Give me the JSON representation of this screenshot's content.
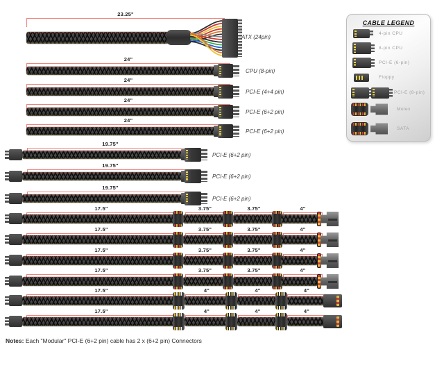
{
  "colors": {
    "dimension_line": "#f0837a",
    "background": "#ffffff"
  },
  "legend": {
    "title": "CABLE LEGEND",
    "items": [
      {
        "label": "4-pin CPU",
        "icons": [
          "cpu-4pin-connector-icon"
        ]
      },
      {
        "label": "8-pin CPU",
        "icons": [
          "cpu-8pin-connector-icon"
        ]
      },
      {
        "label": "PCI-E (6-pin)",
        "icons": [
          "pcie-6pin-connector-icon"
        ]
      },
      {
        "label": "Floppy",
        "icons": [
          "floppy-connector-icon"
        ]
      },
      {
        "label": "PCI-E (8-pin)",
        "icons": [
          "pcie-8pin-connector-icon-a",
          "pcie-8pin-connector-icon-b"
        ]
      },
      {
        "label": "Molex",
        "icons": [
          "molex-inline-connector-icon",
          "molex-plug-icon"
        ]
      },
      {
        "label": "SATA",
        "icons": [
          "sata-inline-connector-icon",
          "sata-plug-icon"
        ]
      }
    ]
  },
  "cables": [
    {
      "name": "atx-24pin",
      "label": "ATX (24pin)",
      "measurements": [
        "23.25\""
      ]
    },
    {
      "name": "cpu-8pin",
      "label": "CPU (8-pin)",
      "measurements": [
        "24\""
      ]
    },
    {
      "name": "pcie-4plus4-pin",
      "label": "PCI-E (4+4 pin)",
      "measurements": [
        "24\""
      ]
    },
    {
      "name": "pcie-6plus2-pin-1",
      "label": "PCI-E (6+2 pin)",
      "measurements": [
        "24\""
      ]
    },
    {
      "name": "pcie-6plus2-pin-2",
      "label": "PCI-E (6+2 pin)",
      "measurements": [
        "24\""
      ]
    },
    {
      "name": "pcie-6plus2-modular-1",
      "label": "PCI-E (6+2 pin)",
      "measurements": [
        "19.75\""
      ]
    },
    {
      "name": "pcie-6plus2-modular-2",
      "label": "PCI-E (6+2 pin)",
      "measurements": [
        "19.75\""
      ]
    },
    {
      "name": "pcie-6plus2-modular-3",
      "label": "PCI-E (6+2 pin)",
      "measurements": [
        "19.75\""
      ]
    },
    {
      "name": "sata-cable-1",
      "label": "",
      "measurements": [
        "17.5\"",
        "3.75\"",
        "3.75\"",
        "4\""
      ]
    },
    {
      "name": "sata-cable-2",
      "label": "",
      "measurements": [
        "17.5\"",
        "3.75\"",
        "3.75\"",
        "4\""
      ]
    },
    {
      "name": "sata-cable-3",
      "label": "",
      "measurements": [
        "17.5\"",
        "3.75\"",
        "3.75\"",
        "4\""
      ]
    },
    {
      "name": "sata-cable-4",
      "label": "",
      "measurements": [
        "17.5\"",
        "3.75\"",
        "3.75\"",
        "4\""
      ]
    },
    {
      "name": "molex-cable-1",
      "label": "",
      "measurements": [
        "17.5\"",
        "4\"",
        "4\"",
        "4\""
      ]
    },
    {
      "name": "molex-cable-2",
      "label": "",
      "measurements": [
        "17.5\"",
        "4\"",
        "4\"",
        "4\""
      ]
    }
  ],
  "note": {
    "prefix": "Notes:",
    "text": " Each \"Modular\" PCI-E (6+2 pin) cable has 2 x (6+2 pin) Connectors"
  }
}
